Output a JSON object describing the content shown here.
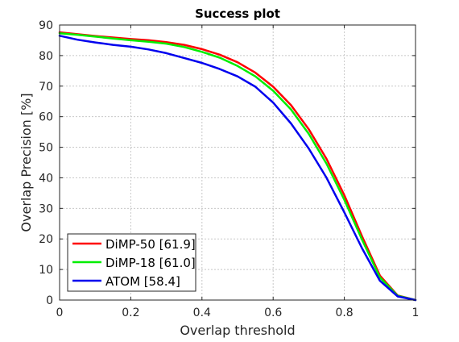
{
  "chart_data": {
    "type": "line",
    "title": "Success plot",
    "xlabel": "Overlap threshold",
    "ylabel": "Overlap Precision [%]",
    "xlim": [
      0,
      1
    ],
    "ylim": [
      0,
      90
    ],
    "xticks": [
      0,
      0.2,
      0.4,
      0.6,
      0.8,
      1
    ],
    "xtick_labels": [
      "0",
      "0.2",
      "0.4",
      "0.6",
      "0.8",
      "1"
    ],
    "yticks": [
      0,
      10,
      20,
      30,
      40,
      50,
      60,
      70,
      80,
      90
    ],
    "ytick_labels": [
      "0",
      "10",
      "20",
      "30",
      "40",
      "50",
      "60",
      "70",
      "80",
      "90"
    ],
    "grid": true,
    "legend_position": "bottom-left",
    "series": [
      {
        "name": "DiMP-50 [61.9]",
        "color": "#ff0000",
        "x": [
          0,
          0.05,
          0.1,
          0.15,
          0.2,
          0.25,
          0.3,
          0.35,
          0.4,
          0.45,
          0.5,
          0.55,
          0.6,
          0.65,
          0.7,
          0.75,
          0.8,
          0.85,
          0.9,
          0.95,
          1.0
        ],
        "y": [
          87.6,
          87.0,
          86.4,
          85.9,
          85.4,
          85.0,
          84.4,
          83.5,
          82.1,
          80.3,
          77.8,
          74.4,
          69.8,
          63.8,
          55.9,
          46.2,
          34.3,
          20.8,
          8.0,
          1.5,
          0.0
        ]
      },
      {
        "name": "DiMP-18 [61.0]",
        "color": "#00ee00",
        "x": [
          0,
          0.05,
          0.1,
          0.15,
          0.2,
          0.25,
          0.3,
          0.35,
          0.4,
          0.45,
          0.5,
          0.55,
          0.6,
          0.65,
          0.7,
          0.75,
          0.8,
          0.85,
          0.9,
          0.95,
          1.0
        ],
        "y": [
          87.3,
          86.8,
          86.2,
          85.6,
          85.0,
          84.5,
          83.9,
          82.8,
          81.2,
          79.3,
          76.6,
          73.2,
          68.5,
          62.4,
          54.4,
          44.6,
          32.8,
          19.7,
          7.4,
          1.4,
          0.0
        ]
      },
      {
        "name": "ATOM [58.4]",
        "color": "#0000ee",
        "x": [
          0,
          0.05,
          0.1,
          0.15,
          0.2,
          0.25,
          0.3,
          0.35,
          0.4,
          0.45,
          0.5,
          0.55,
          0.6,
          0.65,
          0.7,
          0.75,
          0.8,
          0.85,
          0.9,
          0.95,
          1.0
        ],
        "y": [
          86.5,
          85.2,
          84.3,
          83.5,
          82.9,
          82.0,
          80.8,
          79.2,
          77.6,
          75.6,
          73.2,
          69.8,
          64.6,
          57.8,
          49.6,
          40.0,
          28.7,
          16.9,
          6.3,
          1.2,
          0.0
        ]
      }
    ]
  }
}
